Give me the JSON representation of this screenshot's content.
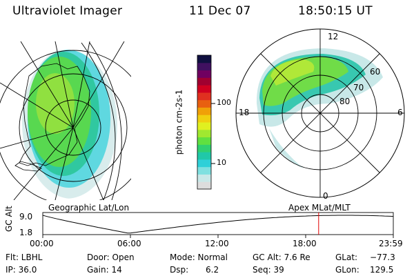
{
  "header": {
    "title": "Ultraviolet Imager",
    "date": "11 Dec 07",
    "time": "18:50:15 UT"
  },
  "colorbar": {
    "unit_label": "photon cm-2s-1",
    "ticks": [
      "100",
      "10"
    ],
    "colors": [
      "#dddddd",
      "#c8e8e8",
      "#7fe0e0",
      "#2fd0d8",
      "#20c8a8",
      "#30d070",
      "#60e040",
      "#a0e830",
      "#e0f020",
      "#f0d010",
      "#f0a008",
      "#e86010",
      "#e03020",
      "#d00020",
      "#a00030",
      "#700060",
      "#401060",
      "#101040"
    ]
  },
  "polar_plot": {
    "mlt_labels": [
      "12",
      "18",
      "6",
      "0"
    ],
    "mlat_labels": [
      "60",
      "70",
      "80"
    ]
  },
  "altitude_plot": {
    "left_title": "Geographic Lat/Lon",
    "right_title": "Apex MLat/MLT",
    "axis_label": "GC Alt",
    "y_ticks": [
      "9.0",
      "1.8"
    ],
    "x_ticks": [
      "00:00",
      "06:00",
      "12:00",
      "18:00",
      "23:59"
    ],
    "current_time_fraction": 0.787,
    "line_color": "#000000",
    "marker_color": "#e00000"
  },
  "info": {
    "flt": "Flt: LBHL",
    "ip": "IP: 36.0",
    "door": "Door: Open",
    "gain": "Gain: 14",
    "mode": "Mode: Normal",
    "dsp_label": "Dsp:",
    "dsp_value": "6.2",
    "gc_alt": "GC Alt: 7.6 Re",
    "seq": "Seq: 39",
    "glat_label": "GLat:",
    "glat_value": "−77.3",
    "glon_label": "GLon:",
    "glon_value": "129.5"
  }
}
